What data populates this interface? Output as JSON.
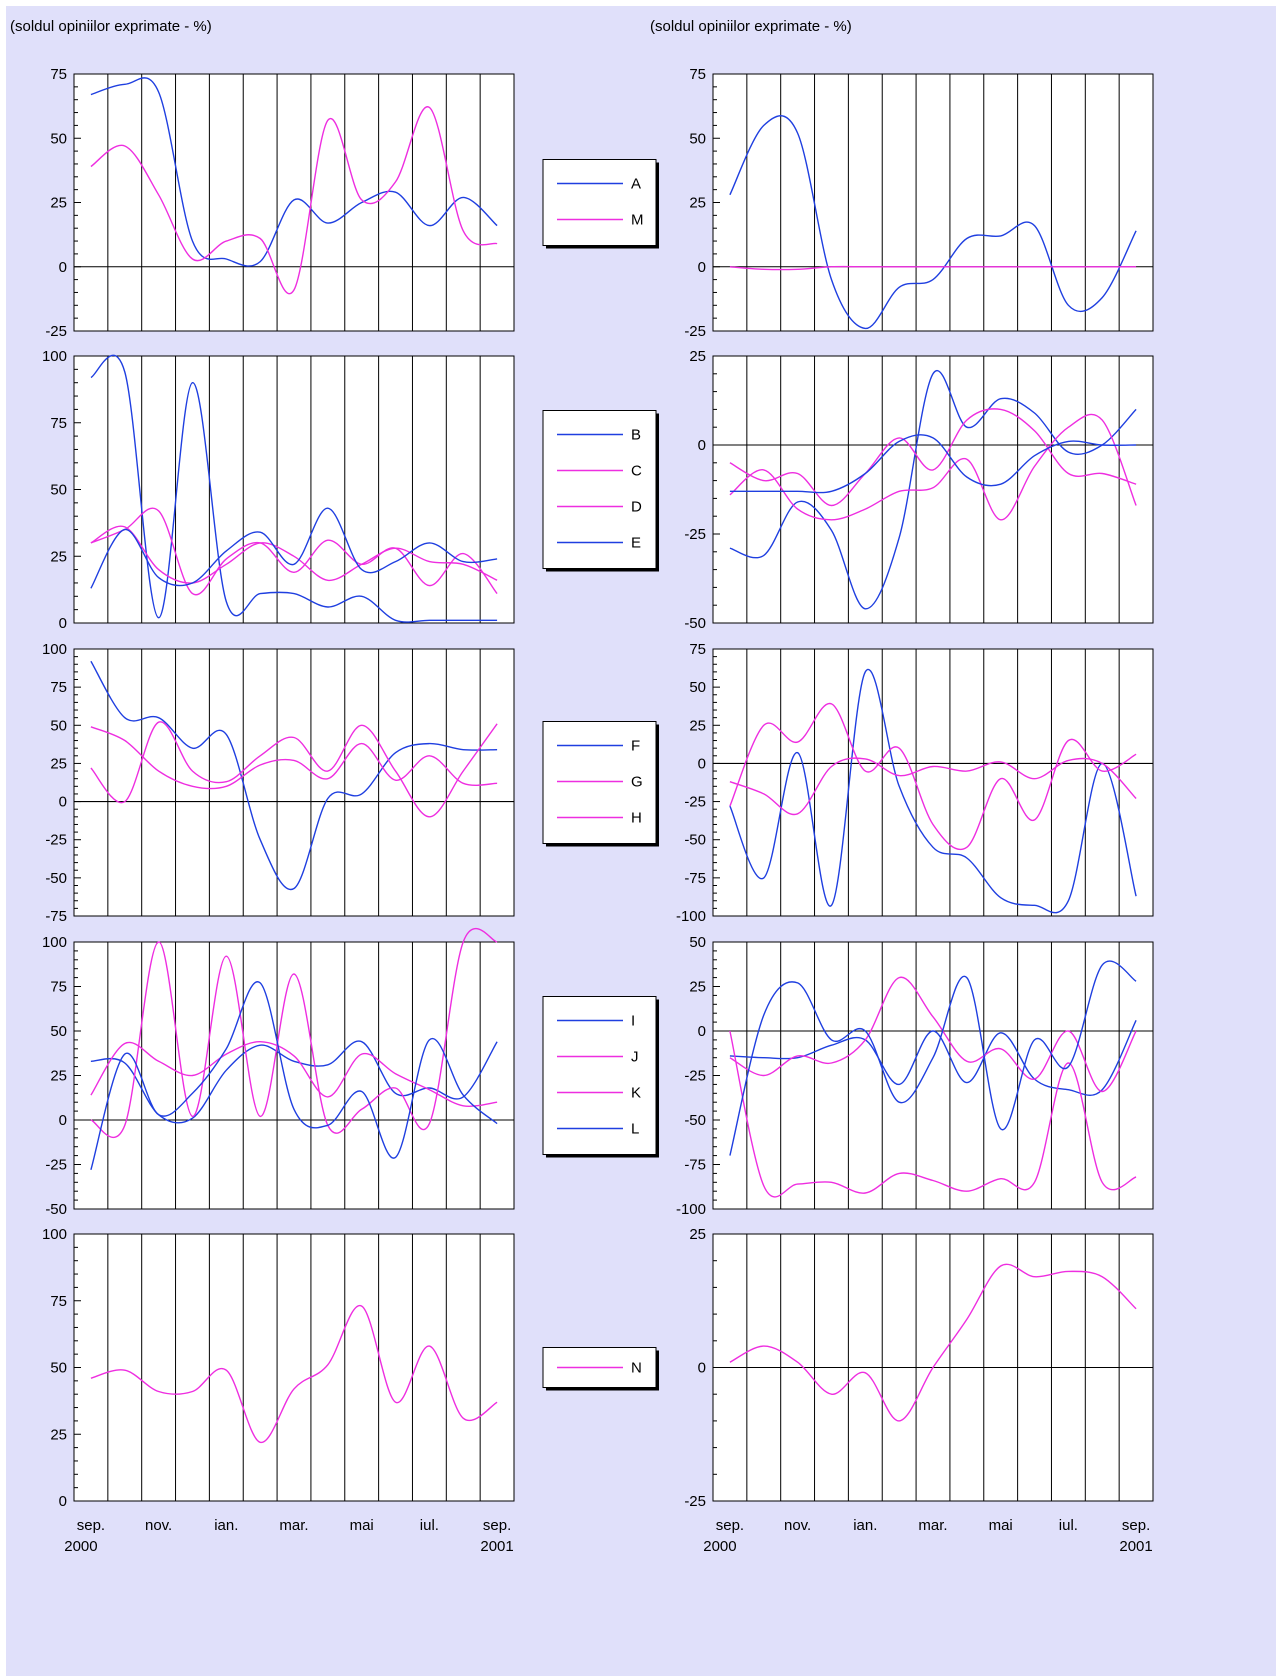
{
  "header_left": "(soldul opiniilor exprimate - %)",
  "header_right": "(soldul opiniilor exprimate - %)",
  "x_tick_labels": [
    "sep.",
    "nov.",
    "ian.",
    "mar.",
    "mai",
    "iul.",
    "sep."
  ],
  "x_year_start": "2000",
  "x_year_end": "2001",
  "colors": {
    "blue": "#1f3fe0",
    "magenta": "#ee2ee0",
    "background": "#e0e0fa"
  },
  "chart_data": [
    {
      "type": "line",
      "panel": "left-1",
      "ylim": [
        -25,
        75
      ],
      "yticks": [
        -25,
        0,
        25,
        50,
        75
      ],
      "x": [
        "sep. 2000",
        "oct. 2000",
        "nov. 2000",
        "dec. 2000",
        "ian. 2001",
        "feb. 2001",
        "mar. 2001",
        "apr. 2001",
        "mai 2001",
        "iun. 2001",
        "iul. 2001",
        "aug. 2001",
        "sep. 2001"
      ],
      "series": [
        {
          "name": "A",
          "color": "blue",
          "values": [
            67,
            71,
            68,
            10,
            3,
            2,
            26,
            17,
            25,
            29,
            16,
            27,
            16
          ]
        },
        {
          "name": "M",
          "color": "magenta",
          "values": [
            39,
            47,
            28,
            3,
            10,
            11,
            -9,
            57,
            26,
            33,
            62,
            14,
            9
          ]
        }
      ]
    },
    {
      "type": "line",
      "panel": "right-1",
      "ylim": [
        -25,
        75
      ],
      "yticks": [
        -25,
        0,
        25,
        50,
        75
      ],
      "x": [
        "sep. 2000",
        "oct. 2000",
        "nov. 2000",
        "dec. 2000",
        "ian. 2001",
        "feb. 2001",
        "mar. 2001",
        "apr. 2001",
        "mai 2001",
        "iun. 2001",
        "iul. 2001",
        "aug. 2001",
        "sep. 2001"
      ],
      "series": [
        {
          "name": "A",
          "color": "blue",
          "values": [
            28,
            55,
            52,
            -5,
            -24,
            -8,
            -5,
            11,
            12,
            16,
            -15,
            -12,
            14
          ]
        },
        {
          "name": "M",
          "color": "magenta",
          "values": [
            0,
            -1,
            -1,
            0,
            0,
            0,
            0,
            0,
            0,
            0,
            0,
            0,
            0
          ]
        }
      ]
    },
    {
      "type": "line",
      "panel": "left-2",
      "ylim": [
        0,
        100
      ],
      "yticks": [
        0,
        25,
        50,
        75,
        100
      ],
      "x": [
        "sep. 2000",
        "oct. 2000",
        "nov. 2000",
        "dec. 2000",
        "ian. 2001",
        "feb. 2001",
        "mar. 2001",
        "apr. 2001",
        "mai 2001",
        "iun. 2001",
        "iul. 2001",
        "aug. 2001",
        "sep. 2001"
      ],
      "series": [
        {
          "name": "B",
          "color": "blue",
          "values": [
            92,
            94,
            2,
            90,
            8,
            11,
            11,
            6,
            10,
            1,
            1,
            1,
            1
          ]
        },
        {
          "name": "C",
          "color": "magenta",
          "values": [
            30,
            35,
            42,
            11,
            24,
            30,
            19,
            31,
            22,
            28,
            14,
            26,
            11
          ]
        },
        {
          "name": "D",
          "color": "magenta",
          "values": [
            30,
            36,
            20,
            15,
            22,
            30,
            25,
            16,
            22,
            28,
            23,
            22,
            16
          ]
        },
        {
          "name": "E",
          "color": "blue",
          "values": [
            13,
            35,
            17,
            15,
            27,
            34,
            22,
            43,
            20,
            23,
            30,
            23,
            24
          ]
        }
      ]
    },
    {
      "type": "line",
      "panel": "right-2",
      "ylim": [
        -50,
        25
      ],
      "yticks": [
        -50,
        -25,
        0,
        25
      ],
      "x": [
        "sep. 2000",
        "oct. 2000",
        "nov. 2000",
        "dec. 2000",
        "ian. 2001",
        "feb. 2001",
        "mar. 2001",
        "apr. 2001",
        "mai 2001",
        "iun. 2001",
        "iul. 2001",
        "aug. 2001",
        "sep. 2001"
      ],
      "series": [
        {
          "name": "B",
          "color": "blue",
          "values": [
            -29,
            -31,
            -16,
            -24,
            -46,
            -26,
            20,
            5,
            13,
            9,
            -2,
            0,
            10
          ]
        },
        {
          "name": "C",
          "color": "magenta",
          "values": [
            -5,
            -10,
            -8,
            -17,
            -8,
            2,
            -7,
            7,
            10,
            4,
            -8,
            -8,
            -11
          ]
        },
        {
          "name": "D",
          "color": "magenta",
          "values": [
            -14,
            -7,
            -18,
            -21,
            -18,
            -13,
            -12,
            -4,
            -21,
            -6,
            5,
            7,
            -17
          ]
        },
        {
          "name": "E",
          "color": "blue",
          "values": [
            -13,
            -13,
            -13,
            -13,
            -8,
            1,
            2,
            -9,
            -11,
            -3,
            1,
            0,
            0
          ]
        }
      ]
    },
    {
      "type": "line",
      "panel": "left-3",
      "ylim": [
        -75,
        100
      ],
      "yticks": [
        -75,
        -50,
        -25,
        0,
        25,
        50,
        75,
        100
      ],
      "x": [
        "sep. 2000",
        "oct. 2000",
        "nov. 2000",
        "dec. 2000",
        "ian. 2001",
        "feb. 2001",
        "mar. 2001",
        "apr. 2001",
        "mai 2001",
        "iun. 2001",
        "iul. 2001",
        "aug. 2001",
        "sep. 2001"
      ],
      "series": [
        {
          "name": "F",
          "color": "blue",
          "values": [
            92,
            55,
            55,
            35,
            44,
            -25,
            -57,
            2,
            5,
            32,
            38,
            34,
            34
          ]
        },
        {
          "name": "G",
          "color": "magenta",
          "values": [
            49,
            40,
            20,
            10,
            10,
            24,
            27,
            15,
            38,
            14,
            30,
            12,
            12
          ]
        },
        {
          "name": "H",
          "color": "magenta",
          "values": [
            22,
            0,
            52,
            20,
            13,
            30,
            42,
            20,
            50,
            20,
            -10,
            20,
            51
          ]
        }
      ]
    },
    {
      "type": "line",
      "panel": "right-3",
      "ylim": [
        -100,
        75
      ],
      "yticks": [
        -100,
        -75,
        -50,
        -25,
        0,
        25,
        50,
        75
      ],
      "x": [
        "sep. 2000",
        "oct. 2000",
        "nov. 2000",
        "dec. 2000",
        "ian. 2001",
        "feb. 2001",
        "mar. 2001",
        "apr. 2001",
        "mai 2001",
        "iun. 2001",
        "iul. 2001",
        "aug. 2001",
        "sep. 2001"
      ],
      "series": [
        {
          "name": "F",
          "color": "blue",
          "values": [
            -28,
            -75,
            7,
            -93,
            60,
            -15,
            -55,
            -62,
            -88,
            -93,
            -90,
            0,
            -87
          ]
        },
        {
          "name": "G",
          "color": "magenta",
          "values": [
            -28,
            25,
            14,
            39,
            -5,
            10,
            -40,
            -55,
            -10,
            -37,
            15,
            -5,
            6
          ]
        },
        {
          "name": "H",
          "color": "magenta",
          "values": [
            -12,
            -20,
            -33,
            -2,
            3,
            -8,
            -2,
            -5,
            1,
            -10,
            2,
            0,
            -23
          ]
        }
      ]
    },
    {
      "type": "line",
      "panel": "left-4",
      "ylim": [
        -50,
        100
      ],
      "yticks": [
        -50,
        -25,
        0,
        25,
        50,
        75,
        100
      ],
      "x": [
        "sep. 2000",
        "oct. 2000",
        "nov. 2000",
        "dec. 2000",
        "ian. 2001",
        "feb. 2001",
        "mar. 2001",
        "apr. 2001",
        "mai 2001",
        "iun. 2001",
        "iul. 2001",
        "aug. 2001",
        "sep. 2001"
      ],
      "series": [
        {
          "name": "I",
          "color": "blue",
          "values": [
            33,
            32,
            3,
            1,
            28,
            42,
            33,
            31,
            44,
            15,
            18,
            13,
            44
          ]
        },
        {
          "name": "J",
          "color": "magenta",
          "values": [
            14,
            43,
            33,
            25,
            37,
            44,
            36,
            13,
            37,
            26,
            17,
            8,
            10
          ]
        },
        {
          "name": "K",
          "color": "magenta",
          "values": [
            0,
            -3,
            100,
            2,
            92,
            2,
            82,
            -3,
            6,
            18,
            -2,
            100,
            100
          ]
        },
        {
          "name": "L",
          "color": "blue",
          "values": [
            -28,
            37,
            3,
            15,
            40,
            77,
            6,
            -3,
            16,
            -21,
            45,
            14,
            -2
          ]
        }
      ]
    },
    {
      "type": "line",
      "panel": "right-4",
      "ylim": [
        -100,
        50
      ],
      "yticks": [
        -100,
        -75,
        -50,
        -25,
        0,
        25,
        50
      ],
      "x": [
        "sep. 2000",
        "oct. 2000",
        "nov. 2000",
        "dec. 2000",
        "ian. 2001",
        "feb. 2001",
        "mar. 2001",
        "apr. 2001",
        "mai 2001",
        "iun. 2001",
        "iul. 2001",
        "aug. 2001",
        "sep. 2001"
      ],
      "series": [
        {
          "name": "I",
          "color": "blue",
          "values": [
            -14,
            -15,
            -15,
            -8,
            -5,
            -30,
            0,
            -29,
            -1,
            -27,
            -33,
            -33,
            6
          ]
        },
        {
          "name": "J",
          "color": "magenta",
          "values": [
            -15,
            -25,
            -14,
            -18,
            -5,
            30,
            8,
            -17,
            -10,
            -27,
            0,
            -34,
            0
          ]
        },
        {
          "name": "K",
          "color": "magenta",
          "values": [
            0,
            -87,
            -86,
            -85,
            -91,
            -80,
            -84,
            -90,
            -83,
            -85,
            -18,
            -85,
            -82
          ]
        },
        {
          "name": "L",
          "color": "blue",
          "values": [
            -70,
            9,
            27,
            -5,
            0,
            -40,
            -15,
            30,
            -55,
            -5,
            -20,
            37,
            28
          ]
        }
      ]
    },
    {
      "type": "line",
      "panel": "left-5",
      "ylim": [
        0,
        100
      ],
      "yticks": [
        0,
        25,
        50,
        75,
        100
      ],
      "x": [
        "sep. 2000",
        "oct. 2000",
        "nov. 2000",
        "dec. 2000",
        "ian. 2001",
        "feb. 2001",
        "mar. 2001",
        "apr. 2001",
        "mai 2001",
        "iun. 2001",
        "iul. 2001",
        "aug. 2001",
        "sep. 2001"
      ],
      "series": [
        {
          "name": "N",
          "color": "magenta",
          "values": [
            46,
            49,
            41,
            41,
            49,
            22,
            42,
            51,
            73,
            37,
            58,
            31,
            37
          ]
        }
      ]
    },
    {
      "type": "line",
      "panel": "right-5",
      "ylim": [
        -25,
        25
      ],
      "yticks": [
        -25,
        0,
        25
      ],
      "x": [
        "sep. 2000",
        "oct. 2000",
        "nov. 2000",
        "dec. 2000",
        "ian. 2001",
        "feb. 2001",
        "mar. 2001",
        "apr. 2001",
        "mai 2001",
        "iun. 2001",
        "iul. 2001",
        "aug. 2001",
        "sep. 2001"
      ],
      "series": [
        {
          "name": "N",
          "color": "magenta",
          "values": [
            1,
            4,
            1,
            -5,
            -1,
            -10,
            0,
            9,
            19,
            17,
            18,
            17,
            11
          ]
        }
      ]
    }
  ]
}
